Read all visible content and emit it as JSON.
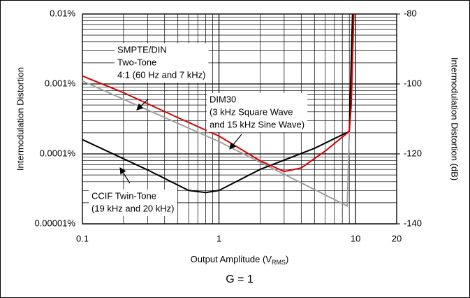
{
  "chart_data": {
    "type": "line",
    "ylabel": "Intermodulation Distortion",
    "y2label": "Intermodulation Distortion (dB)",
    "xlabel": {
      "main": "Output Amplitude (V",
      "sub": "RMS",
      "end": ")"
    },
    "caption": "G = 1",
    "xscale": "log",
    "yscale": "log",
    "grid": true,
    "xlim": [
      0.1,
      20
    ],
    "xticks": [
      0.1,
      1,
      10,
      20
    ],
    "ylim": [
      1e-05,
      0.01
    ],
    "yticks": [
      {
        "value": 0.01,
        "label": "0.01%"
      },
      {
        "value": 0.001,
        "label": "0.001%"
      },
      {
        "value": 0.0001,
        "label": "0.0001%"
      },
      {
        "value": 1e-05,
        "label": "0.00001%"
      }
    ],
    "y2lim": [
      -140,
      -80
    ],
    "y2ticks": [
      -80,
      -100,
      -120,
      -140
    ],
    "series": [
      {
        "label": [
          "SMPTE/DIN",
          "Two-Tone",
          "4:1 (60 Hz and 7 kHz)"
        ],
        "color": "#d40000",
        "x": [
          0.1,
          0.2,
          0.5,
          1,
          2,
          3,
          4,
          6,
          9,
          9.3,
          9.7
        ],
        "values": [
          0.0013,
          0.00075,
          0.00033,
          0.00018,
          8e-05,
          5.6e-05,
          6.3e-05,
          0.00011,
          0.00021,
          0.0005,
          0.01
        ]
      },
      {
        "label": [
          "DIM30",
          "(3 kHz Square Wave",
          "and 15 kHz Sine Wave)"
        ],
        "color": "#a0a0a0",
        "x": [
          0.1,
          1,
          8.7,
          9.0,
          9.6
        ],
        "values": [
          0.0011,
          0.00015,
          1.8e-05,
          0.00022,
          0.01
        ]
      },
      {
        "label": [
          "CCIF Twin-Tone",
          "(19 kHz and 20 kHz)"
        ],
        "color": "#000000",
        "x": [
          0.1,
          0.3,
          0.6,
          0.8,
          1,
          2,
          5,
          9,
          9.5
        ],
        "values": [
          0.00016,
          5.9e-05,
          3e-05,
          2.8e-05,
          3e-05,
          6e-05,
          0.00012,
          0.00021,
          0.01
        ]
      }
    ]
  }
}
